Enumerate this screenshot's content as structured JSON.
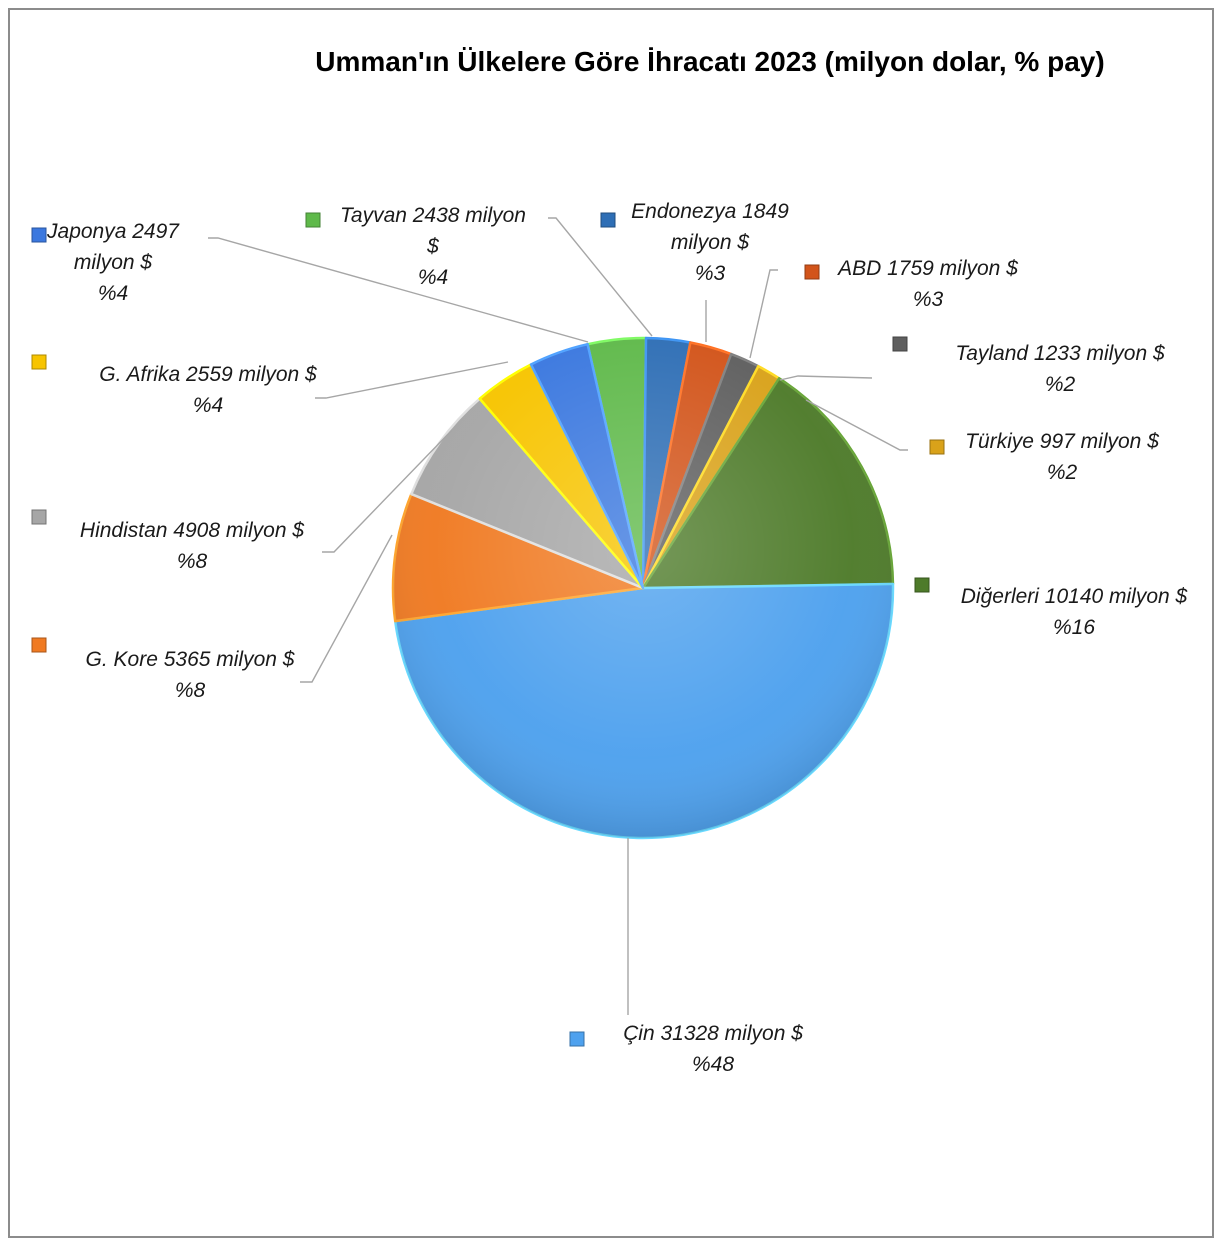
{
  "chart_data": {
    "type": "pie",
    "title": "Umman'ın Ülkelere Göre İhracatı 2023 (milyon dolar, % pay)",
    "start_angle_deg": 0,
    "slices": [
      {
        "name": "Tayvan",
        "value": 2438,
        "percent": 4,
        "color": "#5fb94a",
        "label_lines": [
          "Tayvan 2438 milyon",
          "$",
          "%4"
        ]
      },
      {
        "name": "Endonezya",
        "value": 1849,
        "percent": 3,
        "color": "#2e6eb5",
        "label_lines": [
          "Endonezya 1849",
          "milyon $",
          "%3"
        ]
      },
      {
        "name": "ABD",
        "value": 1759,
        "percent": 3,
        "color": "#d2541a",
        "label_lines": [
          "ABD 1759 milyon $",
          "%3"
        ]
      },
      {
        "name": "Tayland",
        "value": 1233,
        "percent": 2,
        "color": "#5f5f5f",
        "label_lines": [
          "Tayland 1233 milyon $",
          "%2"
        ]
      },
      {
        "name": "Türkiye",
        "value": 997,
        "percent": 2,
        "color": "#d9a21a",
        "label_lines": [
          "Türkiye 997 milyon $",
          "%2"
        ]
      },
      {
        "name": "Diğerleri",
        "value": 10140,
        "percent": 16,
        "color": "#4e7b2a",
        "label_lines": [
          "Diğerleri 10140 milyon $",
          "%16"
        ]
      },
      {
        "name": "Çin",
        "value": 31328,
        "percent": 48,
        "color": "#4ea1ee",
        "label_lines": [
          "Çin 31328 milyon $",
          "%48"
        ]
      },
      {
        "name": "G. Kore",
        "value": 5365,
        "percent": 8,
        "color": "#f07a22",
        "label_lines": [
          "G. Kore 5365 milyon $",
          "%8"
        ]
      },
      {
        "name": "Hindistan",
        "value": 4908,
        "percent": 8,
        "color": "#a6a6a6",
        "label_lines": [
          "Hindistan 4908 milyon $",
          "%8"
        ]
      },
      {
        "name": "G. Afrika",
        "value": 2559,
        "percent": 4,
        "color": "#f7c400",
        "label_lines": [
          "G. Afrika 2559 milyon $",
          "%4"
        ]
      },
      {
        "name": "Japonya",
        "value": 2497,
        "percent": 4,
        "color": "#3b78df",
        "label_lines": [
          "Japonya 2497",
          "milyon $",
          "%4"
        ]
      }
    ]
  }
}
